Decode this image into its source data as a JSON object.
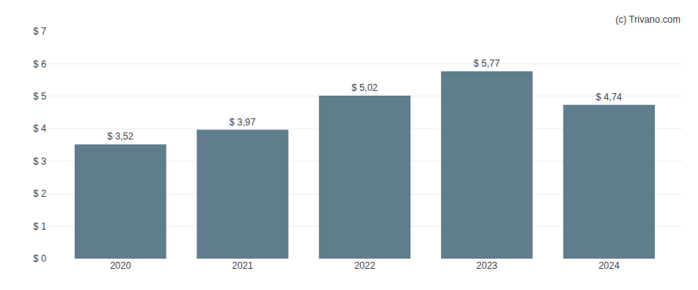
{
  "chart_data": {
    "type": "bar",
    "categories": [
      "2020",
      "2021",
      "2022",
      "2023",
      "2024"
    ],
    "values": [
      3.52,
      3.97,
      5.02,
      5.77,
      4.74
    ],
    "value_labels": [
      "$ 3,52",
      "$ 3,97",
      "$ 5,02",
      "$ 5,77",
      "$ 4,74"
    ],
    "data_labels": true,
    "color": "#5f7d8c",
    "ylim": [
      0,
      7
    ],
    "yticks": [
      {
        "value": 0,
        "label": "$ 0"
      },
      {
        "value": 1,
        "label": "$ 1"
      },
      {
        "value": 2,
        "label": "$ 2"
      },
      {
        "value": 3,
        "label": "$ 3"
      },
      {
        "value": 4,
        "label": "$ 4"
      },
      {
        "value": 5,
        "label": "$ 5"
      },
      {
        "value": 6,
        "label": "$ 6"
      },
      {
        "value": 7,
        "label": "$ 7"
      }
    ],
    "grid": true,
    "annotations": [
      "(c) Trivano.com"
    ]
  }
}
